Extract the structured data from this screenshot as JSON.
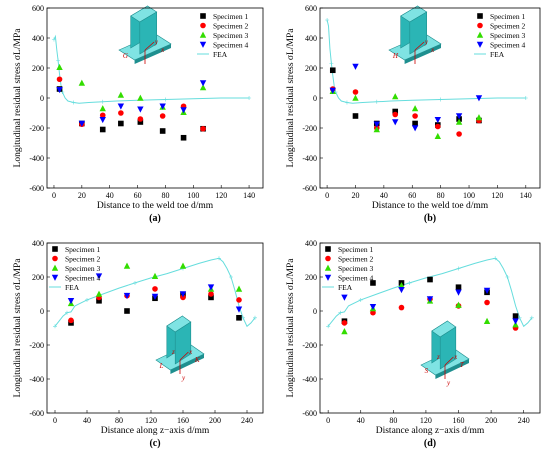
{
  "figure": {
    "panel_labels": [
      "(a)",
      "(b)",
      "(c)",
      "(d)"
    ]
  },
  "colors": {
    "specimen1": "#000000",
    "specimen2": "#ff0000",
    "specimen3": "#33dd00",
    "specimen4": "#0000ff",
    "fea": "#66dddd",
    "model": "#2bb5b5"
  },
  "chart_data": [
    {
      "type": "scatter",
      "panel": "(a)",
      "xlabel": "Distance to the weld toe d/mm",
      "ylabel": "Longitudinal residual stress σL/MPa",
      "xlim": [
        -5,
        150
      ],
      "ylim": [
        -600,
        600
      ],
      "xticks": [
        0,
        20,
        40,
        60,
        80,
        100,
        120,
        140
      ],
      "yticks": [
        -600,
        -400,
        -200,
        0,
        200,
        400,
        600
      ],
      "legend": "top-right",
      "model_labels": [
        "G",
        "x",
        "y"
      ],
      "series": [
        {
          "name": "Specimen 1",
          "marker": "square",
          "x": [
            4,
            20,
            35,
            48,
            62,
            78,
            93,
            107
          ],
          "y": [
            60,
            -170,
            -210,
            -170,
            -160,
            -220,
            -265,
            -205
          ]
        },
        {
          "name": "Specimen 2",
          "marker": "circle",
          "x": [
            4,
            20,
            35,
            48,
            62,
            78,
            93,
            107
          ],
          "y": [
            125,
            -175,
            -115,
            -100,
            -140,
            -120,
            -55,
            -205
          ]
        },
        {
          "name": "Specimen 3",
          "marker": "triangle-up",
          "x": [
            4,
            20,
            35,
            48,
            62,
            78,
            93,
            107
          ],
          "y": [
            205,
            100,
            -70,
            20,
            0,
            -60,
            -95,
            70
          ]
        },
        {
          "name": "Specimen 4",
          "marker": "triangle-down",
          "x": [
            4,
            20,
            35,
            48,
            62,
            78,
            93,
            107
          ],
          "y": [
            55,
            -170,
            -145,
            -55,
            -75,
            -55,
            -80,
            100
          ]
        },
        {
          "name": "FEA",
          "marker": "line",
          "x": [
            0,
            1,
            2,
            3,
            4,
            5,
            6,
            8,
            10,
            14,
            18,
            25,
            35,
            45,
            60,
            80,
            100,
            120,
            140
          ],
          "y": [
            390,
            410,
            320,
            250,
            160,
            90,
            40,
            0,
            -20,
            -30,
            -35,
            -30,
            -25,
            -20,
            -15,
            -10,
            -5,
            0,
            0
          ]
        }
      ]
    },
    {
      "type": "scatter",
      "panel": "(b)",
      "xlabel": "Distance to the weld toe d/mm",
      "ylabel": "Longitudinal residual stress σL/MPa",
      "xlim": [
        -5,
        150
      ],
      "ylim": [
        -600,
        600
      ],
      "xticks": [
        0,
        20,
        40,
        60,
        80,
        100,
        120,
        140
      ],
      "yticks": [
        -600,
        -400,
        -200,
        0,
        200,
        400,
        600
      ],
      "legend": "top-right",
      "model_labels": [
        "H",
        "x",
        "y"
      ],
      "series": [
        {
          "name": "Specimen 1",
          "marker": "square",
          "x": [
            4,
            20,
            35,
            48,
            62,
            78,
            93,
            107
          ],
          "y": [
            185,
            -120,
            -170,
            -90,
            -170,
            -180,
            -140,
            -150
          ]
        },
        {
          "name": "Specimen 2",
          "marker": "circle",
          "x": [
            4,
            20,
            35,
            48,
            62,
            78,
            93,
            107
          ],
          "y": [
            60,
            40,
            -200,
            -110,
            -120,
            -190,
            -240,
            -150
          ]
        },
        {
          "name": "Specimen 3",
          "marker": "triangle-up",
          "x": [
            4,
            20,
            35,
            48,
            62,
            78,
            93,
            107
          ],
          "y": [
            45,
            0,
            -210,
            10,
            -70,
            -255,
            -160,
            -130
          ]
        },
        {
          "name": "Specimen 4",
          "marker": "triangle-down",
          "x": [
            4,
            20,
            35,
            48,
            62,
            78,
            93,
            107
          ],
          "y": [
            50,
            210,
            -175,
            -160,
            -200,
            -145,
            -120,
            0
          ]
        },
        {
          "name": "FEA",
          "marker": "line",
          "x": [
            0,
            1,
            2,
            3,
            4,
            5,
            6,
            8,
            10,
            14,
            18,
            25,
            35,
            45,
            60,
            80,
            100,
            120,
            140
          ],
          "y": [
            520,
            480,
            330,
            230,
            150,
            80,
            40,
            0,
            -20,
            -30,
            -35,
            -30,
            -25,
            -20,
            -15,
            -10,
            -5,
            0,
            0
          ]
        }
      ]
    },
    {
      "type": "scatter",
      "panel": "(c)",
      "xlabel": "Distance along z−axis d/mm",
      "ylabel": "Longitudinal residual stress σL/MPa",
      "xlim": [
        -10,
        260
      ],
      "ylim": [
        -600,
        400
      ],
      "xticks": [
        0,
        40,
        80,
        120,
        160,
        200,
        240
      ],
      "yticks": [
        -600,
        -400,
        -200,
        0,
        200,
        400
      ],
      "legend": "top-left",
      "model_labels": [
        "L",
        "K",
        "x",
        "y",
        "z"
      ],
      "series": [
        {
          "name": "Specimen 1",
          "marker": "square",
          "x": [
            20,
            55,
            90,
            125,
            160,
            195,
            230
          ],
          "y": [
            -70,
            60,
            0,
            75,
            95,
            80,
            -40
          ]
        },
        {
          "name": "Specimen 2",
          "marker": "circle",
          "x": [
            20,
            55,
            90,
            125,
            160,
            195,
            230
          ],
          "y": [
            -55,
            80,
            90,
            130,
            80,
            100,
            65
          ]
        },
        {
          "name": "Specimen 3",
          "marker": "triangle-up",
          "x": [
            20,
            55,
            90,
            125,
            160,
            195,
            230
          ],
          "y": [
            45,
            100,
            265,
            205,
            265,
            130,
            130
          ]
        },
        {
          "name": "Specimen 4",
          "marker": "triangle-down",
          "x": [
            20,
            55,
            90,
            125,
            160,
            195,
            230
          ],
          "y": [
            60,
            205,
            90,
            85,
            100,
            140,
            10
          ]
        },
        {
          "name": "FEA",
          "marker": "line",
          "x": [
            0,
            5,
            10,
            15,
            20,
            25,
            40,
            60,
            80,
            100,
            120,
            140,
            160,
            180,
            195,
            205,
            210,
            215,
            220,
            225,
            230,
            235,
            240,
            245,
            250
          ],
          "y": [
            -90,
            -60,
            -30,
            -10,
            -5,
            30,
            65,
            100,
            135,
            165,
            195,
            220,
            250,
            280,
            300,
            310,
            290,
            250,
            200,
            120,
            30,
            -40,
            -90,
            -70,
            -40
          ]
        }
      ]
    },
    {
      "type": "scatter",
      "panel": "(d)",
      "xlabel": "Distance along z−axis d/mm",
      "ylabel": "Longitudinal residual stress σL/MPa",
      "xlim": [
        -10,
        260
      ],
      "ylim": [
        -600,
        400
      ],
      "xticks": [
        0,
        40,
        80,
        120,
        160,
        200,
        240
      ],
      "yticks": [
        -600,
        -400,
        -200,
        0,
        200,
        400
      ],
      "legend": "top-left",
      "model_labels": [
        "S",
        "T",
        "x",
        "y",
        "z"
      ],
      "series": [
        {
          "name": "Specimen 1",
          "marker": "square",
          "x": [
            20,
            55,
            90,
            125,
            160,
            195,
            230
          ],
          "y": [
            -60,
            165,
            165,
            185,
            140,
            110,
            -30
          ]
        },
        {
          "name": "Specimen 2",
          "marker": "circle",
          "x": [
            20,
            55,
            90,
            125,
            160,
            195,
            230
          ],
          "y": [
            -70,
            -10,
            20,
            70,
            30,
            50,
            -100
          ]
        },
        {
          "name": "Specimen 3",
          "marker": "triangle-up",
          "x": [
            20,
            55,
            90,
            125,
            160,
            195,
            230
          ],
          "y": [
            -120,
            15,
            150,
            60,
            35,
            -60,
            -80
          ]
        },
        {
          "name": "Specimen 4",
          "marker": "triangle-down",
          "x": [
            20,
            55,
            90,
            125,
            160,
            195,
            230
          ],
          "y": [
            80,
            25,
            125,
            70,
            110,
            120,
            -60
          ]
        },
        {
          "name": "FEA",
          "marker": "line",
          "x": [
            0,
            5,
            10,
            15,
            20,
            25,
            40,
            60,
            80,
            100,
            120,
            140,
            160,
            180,
            195,
            205,
            210,
            215,
            220,
            225,
            230,
            235,
            240,
            245,
            250
          ],
          "y": [
            -90,
            -60,
            -30,
            -10,
            -5,
            30,
            65,
            100,
            135,
            165,
            195,
            220,
            250,
            280,
            300,
            310,
            290,
            250,
            200,
            120,
            30,
            -40,
            -90,
            -70,
            -40
          ]
        }
      ]
    }
  ]
}
